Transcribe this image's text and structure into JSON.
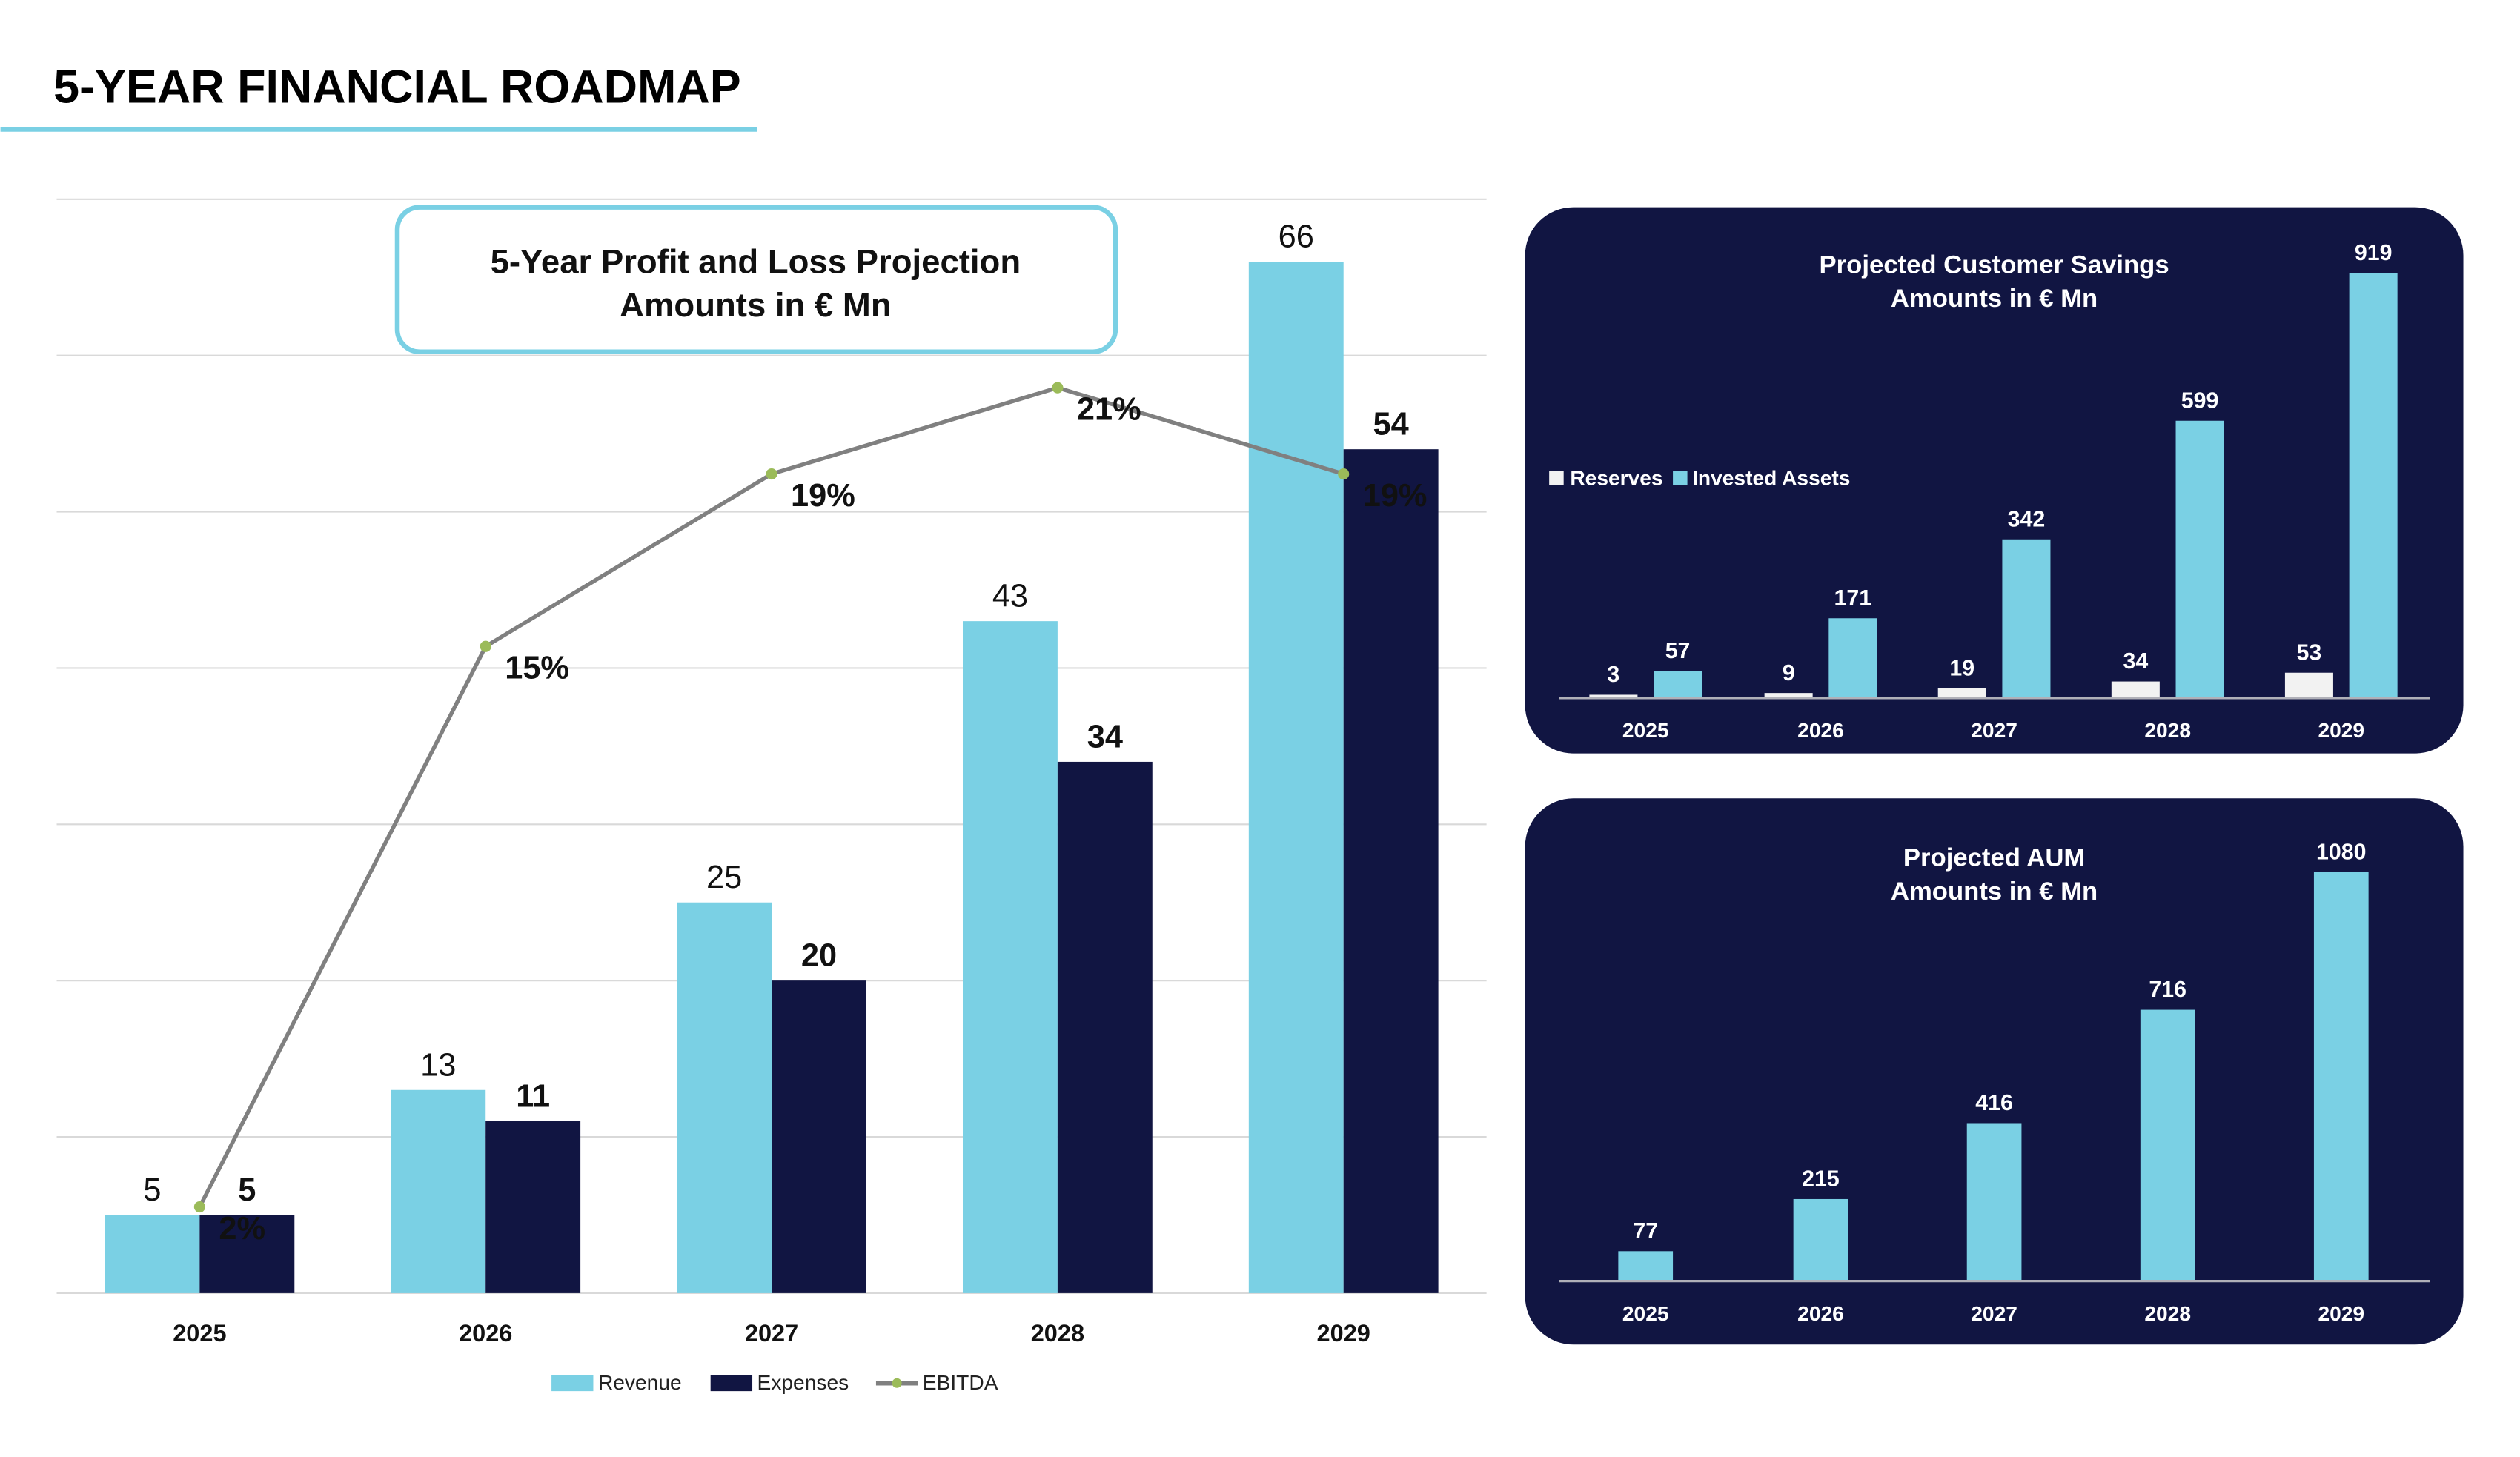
{
  "page": {
    "title": "5-YEAR FINANCIAL ROADMAP"
  },
  "colors": {
    "light": "#7ad0e4",
    "dark": "#111542",
    "line": "#808080",
    "marker": "#9bbb59",
    "grid": "#d9d9d9",
    "panel": "#111542",
    "reserves": "#f2f2f2"
  },
  "chart_data": [
    {
      "type": "bar",
      "title": "5-Year Profit and Loss Projection",
      "subtitle": "Amounts in € Mn",
      "categories": [
        "2025",
        "2026",
        "2027",
        "2028",
        "2029"
      ],
      "series": [
        {
          "name": "Revenue",
          "values": [
            5,
            13,
            25,
            43,
            66
          ],
          "labels": [
            "5",
            "13",
            "25",
            "43",
            "66"
          ]
        },
        {
          "name": "Expenses",
          "values": [
            5,
            11,
            20,
            34,
            54
          ],
          "labels": [
            "5",
            "11",
            "20",
            "34",
            "54"
          ]
        },
        {
          "name": "EBITDA",
          "type": "line",
          "axis": "secondary",
          "values": [
            2,
            15,
            19,
            21,
            19
          ],
          "labels": [
            "2%",
            "15%",
            "19%",
            "21%",
            "19%"
          ]
        }
      ],
      "ylim": [
        0,
        70
      ],
      "y2lim": [
        0,
        25
      ],
      "grid": true,
      "legend": "bottom"
    },
    {
      "type": "bar",
      "title": "Projected Customer Savings",
      "subtitle": "Amounts in € Mn",
      "categories": [
        "2025",
        "2026",
        "2027",
        "2028",
        "2029"
      ],
      "series": [
        {
          "name": "Reserves",
          "values": [
            3,
            9,
            19,
            34,
            53
          ],
          "labels": [
            "3",
            "9",
            "19",
            "34",
            "53"
          ]
        },
        {
          "name": "Invested Assets",
          "values": [
            57,
            171,
            342,
            599,
            919
          ],
          "labels": [
            "57",
            "171",
            "342",
            "599",
            "919"
          ]
        }
      ],
      "ylim": [
        0,
        1000
      ],
      "legend": "left"
    },
    {
      "type": "bar",
      "title": "Projected AUM",
      "subtitle": "Amounts in € Mn",
      "categories": [
        "2025",
        "2026",
        "2027",
        "2028",
        "2029"
      ],
      "series": [
        {
          "name": "AUM",
          "values": [
            77,
            215,
            416,
            716,
            1080
          ],
          "labels": [
            "77",
            "215",
            "416",
            "716",
            "1080"
          ]
        }
      ],
      "ylim": [
        0,
        1150
      ]
    }
  ]
}
